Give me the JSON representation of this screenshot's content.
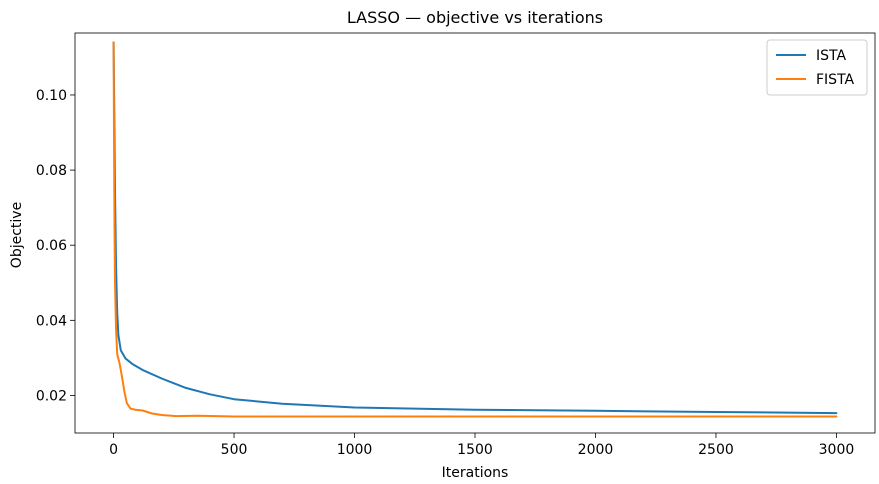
{
  "chart_data": {
    "type": "line",
    "title": "LASSO — objective vs iterations",
    "xlabel": "Iterations",
    "ylabel": "Objective",
    "xlim": [
      -160,
      3160
    ],
    "ylim": [
      0.01,
      0.1165
    ],
    "xticks": [
      0,
      500,
      1000,
      1500,
      2000,
      2500,
      3000
    ],
    "xtick_labels": [
      "0",
      "500",
      "1000",
      "1500",
      "2000",
      "2500",
      "3000"
    ],
    "yticks": [
      0.02,
      0.04,
      0.06,
      0.08,
      0.1
    ],
    "ytick_labels": [
      "0.02",
      "0.04",
      "0.06",
      "0.08",
      "0.10"
    ],
    "grid": false,
    "legend_position": "upper-right",
    "series": [
      {
        "name": "ISTA",
        "color": "#1f77b4",
        "points": [
          [
            0,
            0.114
          ],
          [
            3,
            0.095
          ],
          [
            6,
            0.075
          ],
          [
            10,
            0.055
          ],
          [
            15,
            0.042
          ],
          [
            20,
            0.036
          ],
          [
            30,
            0.032
          ],
          [
            50,
            0.0298
          ],
          [
            80,
            0.0283
          ],
          [
            120,
            0.0268
          ],
          [
            200,
            0.0245
          ],
          [
            300,
            0.022
          ],
          [
            400,
            0.0203
          ],
          [
            500,
            0.019
          ],
          [
            700,
            0.0178
          ],
          [
            1000,
            0.0168
          ],
          [
            1500,
            0.0162
          ],
          [
            2000,
            0.0159
          ],
          [
            2500,
            0.0156
          ],
          [
            3000,
            0.0153
          ]
        ]
      },
      {
        "name": "FISTA",
        "color": "#ff7f0e",
        "points": [
          [
            0,
            0.114
          ],
          [
            2,
            0.09
          ],
          [
            4,
            0.065
          ],
          [
            6,
            0.05
          ],
          [
            10,
            0.038
          ],
          [
            15,
            0.031
          ],
          [
            25,
            0.0285
          ],
          [
            35,
            0.025
          ],
          [
            45,
            0.021
          ],
          [
            55,
            0.018
          ],
          [
            70,
            0.0165
          ],
          [
            90,
            0.0162
          ],
          [
            120,
            0.016
          ],
          [
            160,
            0.0152
          ],
          [
            200,
            0.0148
          ],
          [
            260,
            0.0145
          ],
          [
            350,
            0.0146
          ],
          [
            500,
            0.0144
          ],
          [
            1000,
            0.0144
          ],
          [
            2000,
            0.0144
          ],
          [
            3000,
            0.0144
          ]
        ]
      }
    ]
  }
}
